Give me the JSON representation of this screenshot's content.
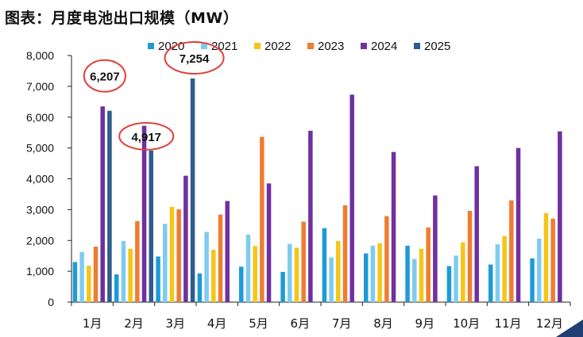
{
  "chart_data": {
    "type": "bar",
    "title": "图表：月度电池出口规模（MW）",
    "categories": [
      "1月",
      "2月",
      "3月",
      "4月",
      "5月",
      "6月",
      "7月",
      "8月",
      "9月",
      "10月",
      "11月",
      "12月"
    ],
    "series": [
      {
        "name": "2020",
        "color": "#1E9BD7",
        "values": [
          1300,
          900,
          1480,
          930,
          1150,
          980,
          2400,
          1580,
          1830,
          1170,
          1220,
          1420
        ]
      },
      {
        "name": "2021",
        "color": "#7FCBF0",
        "values": [
          1630,
          1980,
          2540,
          2280,
          2190,
          1890,
          1450,
          1830,
          1400,
          1510,
          1880,
          2060
        ]
      },
      {
        "name": "2022",
        "color": "#F5C518",
        "values": [
          1180,
          1730,
          3090,
          1700,
          1820,
          1760,
          1980,
          1910,
          1730,
          1940,
          2140,
          2890
        ]
      },
      {
        "name": "2023",
        "color": "#EE7D31",
        "values": [
          1800,
          2630,
          3010,
          2840,
          5360,
          2610,
          3140,
          2790,
          2420,
          2960,
          3300,
          2710
        ]
      },
      {
        "name": "2024",
        "color": "#7030A0",
        "values": [
          6350,
          5720,
          4100,
          3280,
          3850,
          5560,
          6730,
          4870,
          3460,
          4410,
          5000,
          5540
        ]
      },
      {
        "name": "2025",
        "color": "#2E5C8E",
        "values": [
          6207,
          4917,
          7254,
          null,
          null,
          null,
          null,
          null,
          null,
          null,
          null,
          null
        ]
      }
    ],
    "ylim": [
      0,
      8000
    ],
    "yticks": [
      "0",
      "1,000",
      "2,000",
      "3,000",
      "4,000",
      "5,000",
      "6,000",
      "7,000",
      "8,000"
    ],
    "legend_position": "top",
    "annotations": [
      {
        "label": "6,207",
        "category_index": 0,
        "value": 6207,
        "circled": true
      },
      {
        "label": "4,917",
        "category_index": 1,
        "value": 4917,
        "circled": true
      },
      {
        "label": "7,254",
        "category_index": 2,
        "value": 7254,
        "circled": true
      }
    ],
    "annotation_color": "#E0403A",
    "grid": false
  }
}
